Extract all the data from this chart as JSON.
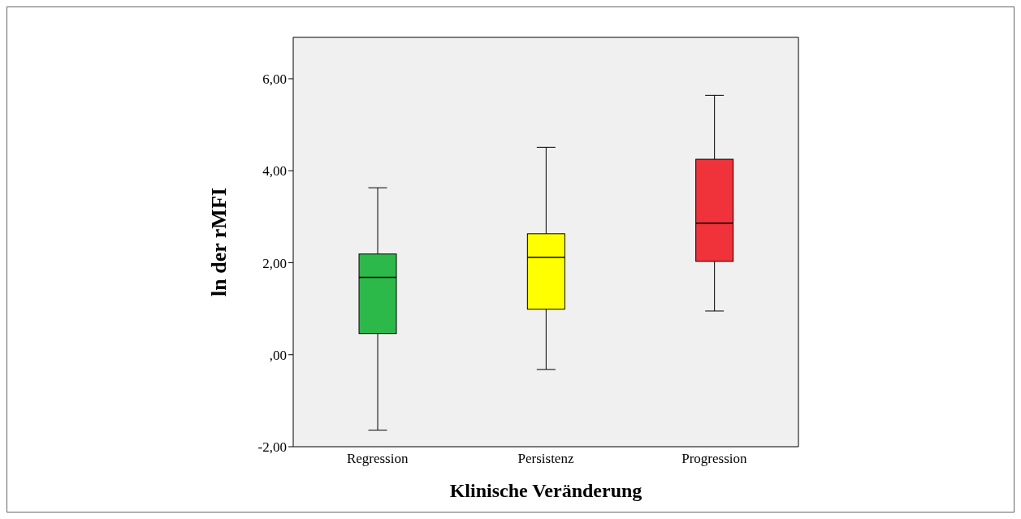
{
  "chart_data": {
    "type": "box",
    "xlabel": "Klinische Veränderung",
    "ylabel": "ln der rMFI",
    "categories": [
      "Regression",
      "Persistenz",
      "Progression"
    ],
    "colors": [
      "#2db84a",
      "#ffff00",
      "#f0323a"
    ],
    "boxes": [
      {
        "low": -1.64,
        "q1": 0.46,
        "median": 1.68,
        "q3": 2.19,
        "high": 3.63
      },
      {
        "low": -0.32,
        "q1": 0.99,
        "median": 2.12,
        "q3": 2.63,
        "high": 4.51
      },
      {
        "low": 0.95,
        "q1": 2.03,
        "median": 2.86,
        "q3": 4.25,
        "high": 5.64
      }
    ],
    "ylim": [
      -2,
      6.9
    ],
    "yticks": [
      {
        "value": -2,
        "label": "-2,00"
      },
      {
        "value": 0,
        "label": ",00"
      },
      {
        "value": 2,
        "label": "2,00"
      },
      {
        "value": 4,
        "label": "4,00"
      },
      {
        "value": 6,
        "label": "6,00"
      }
    ],
    "grid": false
  }
}
